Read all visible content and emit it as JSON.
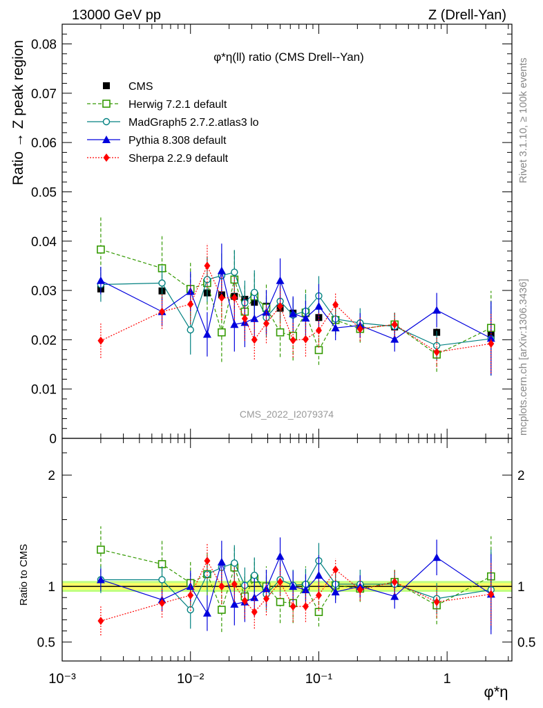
{
  "header": {
    "left_title": "13000 GeV pp",
    "right_title": "Z (Drell-Yan)"
  },
  "side_labels": {
    "rivet": "Rivet 3.1.10, ≥ 100k events",
    "mcplots": "mcplots.cern.ch [arXiv:1306.3436]"
  },
  "watermark": "CMS_2022_I2079374",
  "colors": {
    "cms": "#000000",
    "herwig": "#339900",
    "madgraph": "#008080",
    "pythia": "#0000dd",
    "sherpa": "#ff0000",
    "ref_band_inner": "#ffff66",
    "ref_band_outer": "#c0ff80"
  },
  "chart_data": [
    {
      "type": "scatter",
      "panel": "main",
      "title": "φ*η(ll) ratio (CMS Drell--Yan)",
      "ylabel": "Ratio → Z peak region",
      "xscale": "log",
      "xlim": [
        0.001,
        3.2
      ],
      "ylim": [
        0,
        0.084
      ],
      "yticks": [
        "0",
        "0.01",
        "0.02",
        "0.03",
        "0.04",
        "0.05",
        "0.06",
        "0.07",
        "0.08"
      ],
      "legend_position": "top-left",
      "x": [
        0.002,
        0.006,
        0.01,
        0.0135,
        0.0175,
        0.022,
        0.0265,
        0.0315,
        0.039,
        0.05,
        0.063,
        0.079,
        0.1,
        0.135,
        0.21,
        0.39,
        0.83,
        2.2
      ],
      "series": [
        {
          "name": "CMS",
          "marker": "square-filled",
          "line": "none",
          "values": [
            0.0303,
            0.0299,
            0.0299,
            0.0295,
            0.0291,
            0.0288,
            0.0282,
            0.0276,
            0.0268,
            0.0264,
            0.0254,
            0.0253,
            0.0245,
            0.024,
            0.0228,
            0.0226,
            0.0215,
            0.0209
          ],
          "errors": [
            0.001,
            0.001,
            0.0009,
            0.0009,
            0.0009,
            0.0009,
            0.0009,
            0.0009,
            0.0009,
            0.0009,
            0.0008,
            0.0008,
            0.0008,
            0.0008,
            0.0008,
            0.0008,
            0.0008,
            0.0008
          ]
        },
        {
          "name": "Herwig 7.2.1 default",
          "marker": "square-open",
          "line": "dashed",
          "values": [
            0.0383,
            0.0345,
            0.0303,
            0.0315,
            0.0215,
            0.0322,
            0.0257,
            0.0288,
            0.0265,
            0.0215,
            0.0208,
            0.0255,
            0.0179,
            0.024,
            0.0222,
            0.0231,
            0.017,
            0.0224
          ],
          "errors": [
            0.0065,
            0.0065,
            0.0055,
            0.0055,
            0.006,
            0.006,
            0.0055,
            0.005,
            0.005,
            0.005,
            0.005,
            0.005,
            0.003,
            0.003,
            0.0028,
            0.0028,
            0.0035,
            0.0075
          ]
        },
        {
          "name": "MadGraph5 2.7.2.atlas3 lo",
          "marker": "circle-open",
          "line": "solid",
          "values": [
            0.0312,
            0.0315,
            0.022,
            0.0322,
            0.033,
            0.0337,
            0.0275,
            0.0296,
            0.0245,
            0.0278,
            0.025,
            0.0258,
            0.0289,
            0.0242,
            0.0234,
            0.0227,
            0.0188,
            0.0202
          ],
          "errors": [
            0.0035,
            0.0035,
            0.005,
            0.0045,
            0.0045,
            0.0045,
            0.0045,
            0.0045,
            0.004,
            0.004,
            0.0035,
            0.0035,
            0.004,
            0.003,
            0.003,
            0.0028,
            0.003,
            0.0075
          ]
        },
        {
          "name": "Pythia 8.308 default",
          "marker": "triangle-filled",
          "line": "solid",
          "values": [
            0.032,
            0.0257,
            0.0298,
            0.0211,
            0.034,
            0.0231,
            0.0235,
            0.0243,
            0.0256,
            0.032,
            0.0253,
            0.0244,
            0.0268,
            0.0224,
            0.0229,
            0.0201,
            0.026,
            0.0203
          ],
          "errors": [
            0.0028,
            0.003,
            0.004,
            0.0045,
            0.0055,
            0.0055,
            0.005,
            0.0045,
            0.0045,
            0.0045,
            0.0035,
            0.0035,
            0.0045,
            0.0025,
            0.0025,
            0.0025,
            0.0035,
            0.0075
          ]
        },
        {
          "name": "Sherpa 2.2.9 default",
          "marker": "diamond-filled",
          "line": "dotted",
          "values": [
            0.0198,
            0.0257,
            0.0272,
            0.035,
            0.0285,
            0.0285,
            0.0243,
            0.02,
            0.0233,
            0.0268,
            0.0199,
            0.0201,
            0.0219,
            0.0271,
            0.0222,
            0.0231,
            0.0175,
            0.0192
          ],
          "errors": [
            0.0035,
            0.0035,
            0.004,
            0.0045,
            0.0045,
            0.0045,
            0.0045,
            0.004,
            0.004,
            0.004,
            0.0035,
            0.0035,
            0.0035,
            0.0025,
            0.0025,
            0.0025,
            0.003,
            0.006
          ]
        }
      ]
    },
    {
      "type": "scatter",
      "panel": "ratio",
      "ylabel": "Ratio to CMS",
      "xlabel": "φ*η",
      "xscale": "log",
      "xlim": [
        0.001,
        3.2
      ],
      "ylim": [
        0.33,
        2.33
      ],
      "yticks": [
        "0.5",
        "1",
        "2"
      ],
      "xticks": [
        "10⁻³",
        "10⁻²",
        "10⁻¹",
        "1"
      ],
      "x": [
        0.002,
        0.006,
        0.01,
        0.0135,
        0.0175,
        0.022,
        0.0265,
        0.0315,
        0.039,
        0.05,
        0.063,
        0.079,
        0.1,
        0.135,
        0.21,
        0.39,
        0.83,
        2.2
      ],
      "ref_band": [
        0.97,
        1.03
      ],
      "series": [
        {
          "name": "Herwig 7.2.1 default",
          "values": [
            1.33,
            1.2,
            1.03,
            1.11,
            0.79,
            1.17,
            0.91,
            1.07,
            1.0,
            0.86,
            0.85,
            1.0,
            0.77,
            1.01,
            0.98,
            1.04,
            0.83,
            1.09
          ],
          "errors": [
            0.21,
            0.22,
            0.19,
            0.19,
            0.2,
            0.2,
            0.2,
            0.18,
            0.18,
            0.19,
            0.18,
            0.18,
            0.13,
            0.13,
            0.12,
            0.12,
            0.17,
            0.36
          ]
        },
        {
          "name": "MadGraph5 2.7.2.atlas3 lo",
          "values": [
            1.06,
            1.06,
            0.79,
            1.11,
            1.17,
            1.21,
            1.01,
            1.1,
            0.93,
            1.06,
            1.01,
            1.02,
            1.23,
            1.02,
            1.02,
            1.02,
            0.89,
            0.97
          ],
          "errors": [
            0.12,
            0.12,
            0.17,
            0.16,
            0.16,
            0.16,
            0.16,
            0.16,
            0.15,
            0.15,
            0.14,
            0.14,
            0.16,
            0.13,
            0.13,
            0.12,
            0.14,
            0.36
          ]
        },
        {
          "name": "Pythia 8.308 default",
          "values": [
            1.06,
            0.88,
            1.0,
            0.76,
            1.22,
            0.84,
            0.86,
            0.9,
            0.98,
            1.27,
            1.0,
            0.97,
            1.1,
            0.95,
            1.0,
            0.91,
            1.26,
            0.93
          ],
          "errors": [
            0.1,
            0.1,
            0.14,
            0.16,
            0.19,
            0.19,
            0.18,
            0.17,
            0.17,
            0.17,
            0.14,
            0.14,
            0.18,
            0.1,
            0.1,
            0.11,
            0.16,
            0.36
          ]
        },
        {
          "name": "Sherpa 2.2.9 default",
          "values": [
            0.69,
            0.85,
            0.92,
            1.23,
            1.0,
            1.02,
            0.87,
            0.77,
            0.89,
            1.04,
            0.82,
            0.82,
            0.92,
            1.15,
            0.97,
            1.04,
            0.86,
            0.93
          ],
          "errors": [
            0.13,
            0.13,
            0.14,
            0.16,
            0.16,
            0.16,
            0.16,
            0.15,
            0.15,
            0.15,
            0.14,
            0.14,
            0.14,
            0.1,
            0.1,
            0.11,
            0.14,
            0.28
          ]
        }
      ]
    }
  ]
}
